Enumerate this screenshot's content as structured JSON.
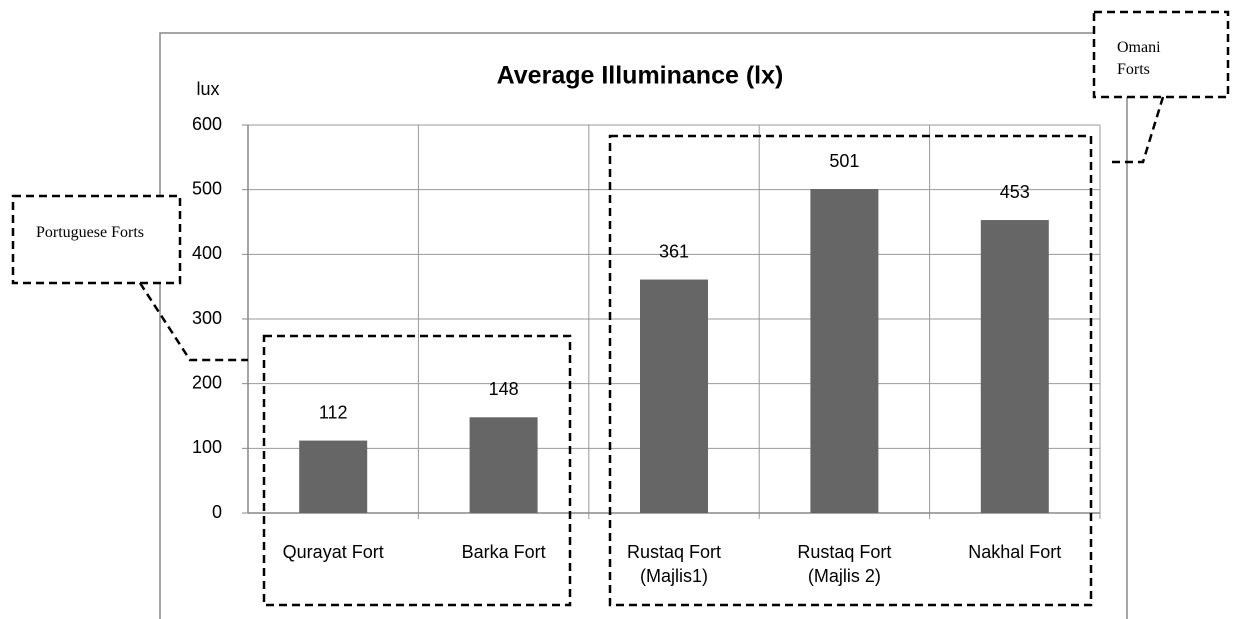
{
  "chart_data": {
    "type": "bar",
    "title": "Average Illuminance (lx)",
    "y_label": "lux",
    "categories": [
      "Qurayat Fort",
      "Barka Fort",
      "Rustaq Fort (Majlis1)",
      "Rustaq Fort (Majlis 2)",
      "Nakhal Fort"
    ],
    "values": [
      112,
      148,
      361,
      501,
      453
    ],
    "color": "#666666",
    "ylim": [
      0,
      600
    ],
    "yticks": [
      0,
      100,
      200,
      300,
      400,
      500,
      600
    ],
    "grid": true,
    "annotations": [
      "Portuguese Forts",
      "Omani Forts"
    ]
  }
}
